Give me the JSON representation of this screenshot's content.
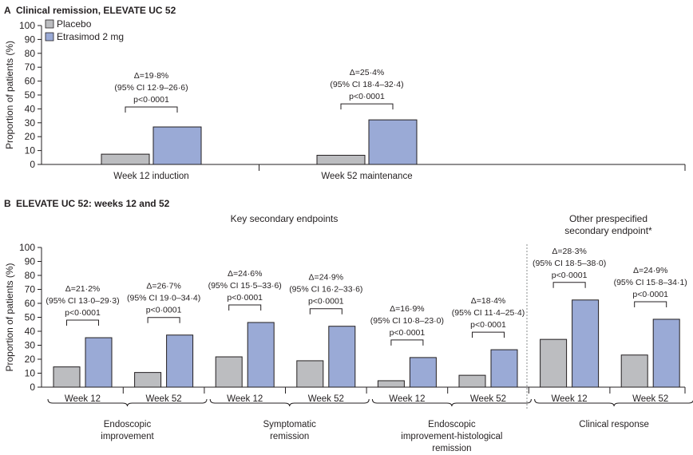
{
  "colors": {
    "placebo": "#bcbdc0",
    "etrasimod": "#9aaad6",
    "stroke": "#231f20",
    "separator": "#8a8c8e"
  },
  "panel_a": {
    "letter": "A",
    "title": "Clinical remission, ELEVATE UC 52"
  },
  "panel_b": {
    "letter": "B",
    "title": "ELEVATE UC 52: weeks 12 and 52",
    "section_key": "Key secondary endpoints",
    "section_other_line1": "Other prespecified",
    "section_other_line2": "secondary endpoint*"
  },
  "legend": {
    "placebo": "Placebo",
    "etrasimod": "Etrasimod 2 mg"
  },
  "chart_data": [
    {
      "type": "bar",
      "title": "Clinical remission, ELEVATE UC 52",
      "ylabel": "Proportion of patients (%)",
      "ylim": [
        0,
        100
      ],
      "yticks": [
        0,
        10,
        20,
        30,
        40,
        50,
        60,
        70,
        80,
        90,
        100
      ],
      "categories": [
        "Week 12 induction",
        "Week 52 maintenance"
      ],
      "series": [
        {
          "name": "Placebo",
          "values": [
            7.4,
            6.6
          ]
        },
        {
          "name": "Etrasimod 2 mg",
          "values": [
            27.0,
            32.1
          ]
        }
      ],
      "annotations": [
        {
          "delta": "Δ=19·8%",
          "ci": "(95% CI 12·9–26·6)",
          "p": "p<0·0001"
        },
        {
          "delta": "Δ=25·4%",
          "ci": "(95% CI 18·4–32·4)",
          "p": "p<0·0001"
        }
      ],
      "legend": "top-left"
    },
    {
      "type": "bar",
      "title": "ELEVATE UC 52: weeks 12 and 52",
      "ylabel": "Proportion of patients (%)",
      "ylim": [
        0,
        100
      ],
      "yticks": [
        0,
        10,
        20,
        30,
        40,
        50,
        60,
        70,
        80,
        90,
        100
      ],
      "categories": [
        "Week 12",
        "Week 52",
        "Week 12",
        "Week 52",
        "Week 12",
        "Week 52",
        "Week 12",
        "Week 52"
      ],
      "groups": [
        {
          "name1": "Endoscopic",
          "name2": "improvement",
          "name3": ""
        },
        {
          "name1": "Symptomatic",
          "name2": "remission",
          "name3": ""
        },
        {
          "name1": "Endoscopic",
          "name2": "improvement-histological",
          "name3": "remission"
        },
        {
          "name1": "Clinical response",
          "name2": "",
          "name3": ""
        }
      ],
      "series": [
        {
          "name": "Placebo",
          "values": [
            14.5,
            10.5,
            21.7,
            18.9,
            4.6,
            8.5,
            34.2,
            23.0
          ]
        },
        {
          "name": "Etrasimod 2 mg",
          "values": [
            35.4,
            37.3,
            46.3,
            43.6,
            21.2,
            26.8,
            62.4,
            48.6
          ]
        }
      ],
      "annotations": [
        {
          "delta": "Δ=21·2%",
          "ci": "(95% CI 13·0–29·3)",
          "p": "p<0·0001"
        },
        {
          "delta": "Δ=26·7%",
          "ci": "(95% CI 19·0–34·4)",
          "p": "p<0·0001"
        },
        {
          "delta": "Δ=24·6%",
          "ci": "(95% CI 15·5–33·6)",
          "p": "p<0·0001"
        },
        {
          "delta": "Δ=24·9%",
          "ci": "(95% CI 16·2–33·6)",
          "p": "p<0·0001"
        },
        {
          "delta": "Δ=16·9%",
          "ci": "(95% CI 10·8–23·0)",
          "p": "p<0·0001"
        },
        {
          "delta": "Δ=18·4%",
          "ci": "(95% CI 11·4–25·4)",
          "p": "p<0·0001"
        },
        {
          "delta": "Δ=28·3%",
          "ci": "(95% CI 18·5–38·0)",
          "p": "p<0·0001"
        },
        {
          "delta": "Δ=24·9%",
          "ci": "(95% CI 15·8–34·1)",
          "p": "p<0·0001"
        }
      ]
    }
  ]
}
